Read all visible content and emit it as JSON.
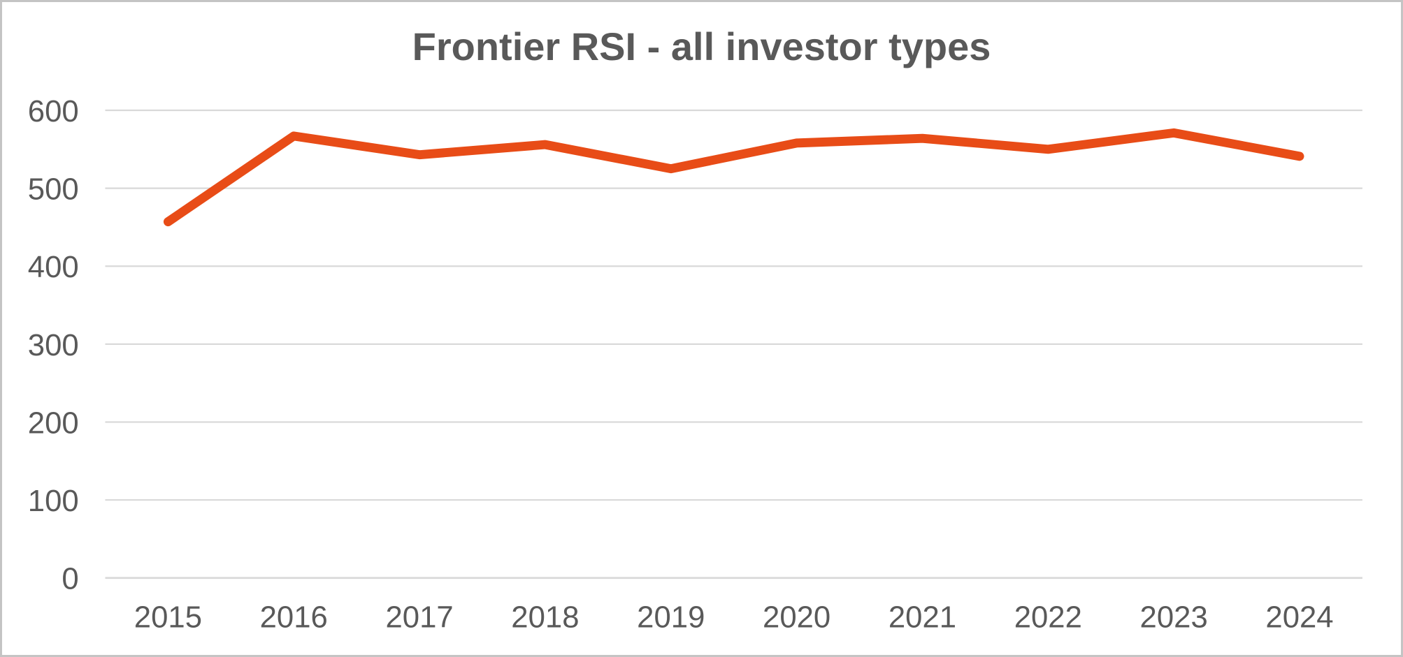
{
  "chart_data": {
    "type": "line",
    "title": "Frontier RSI - all investor types",
    "categories": [
      "2015",
      "2016",
      "2017",
      "2018",
      "2019",
      "2020",
      "2021",
      "2022",
      "2023",
      "2024"
    ],
    "values": [
      457,
      567,
      543,
      556,
      525,
      558,
      564,
      550,
      571,
      541
    ],
    "xlabel": "",
    "ylabel": "",
    "ylim": [
      0,
      600
    ],
    "yticks": [
      0,
      100,
      200,
      300,
      400,
      500,
      600
    ],
    "grid": "horizontal",
    "legend": "none",
    "line_color": "#e84c17",
    "gridline_color": "#d9d9d9",
    "axis_line_color": "#d9d9d9",
    "text_color": "#595959",
    "title_color": "#595959",
    "background_color": "#ffffff"
  }
}
